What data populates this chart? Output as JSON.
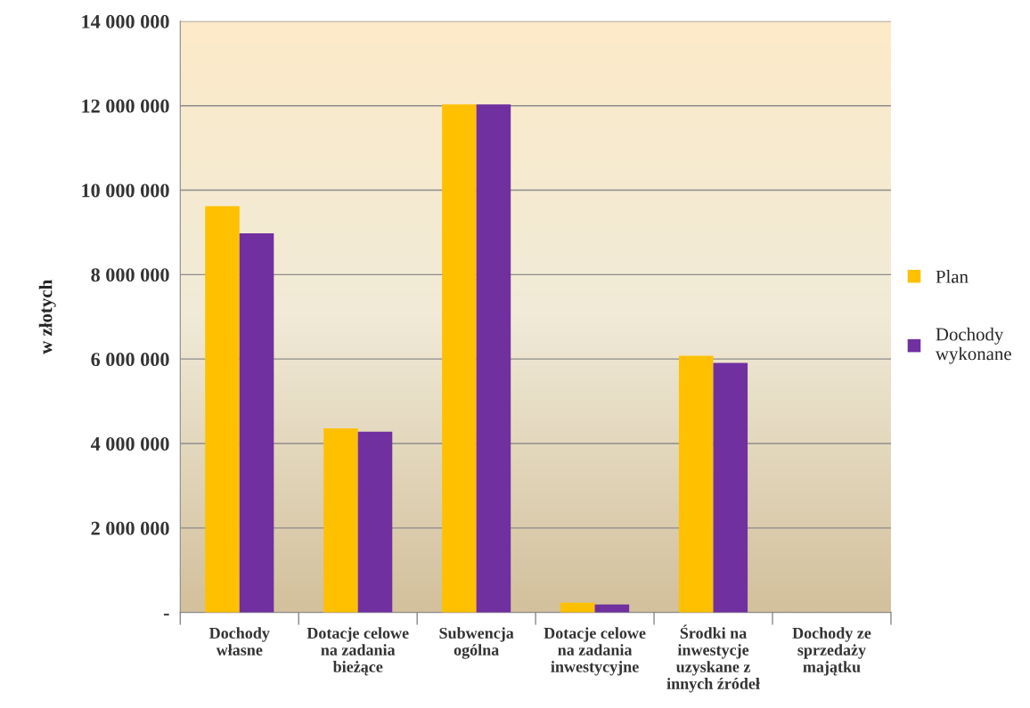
{
  "chart_data": {
    "type": "bar",
    "ylabel": "w złotych",
    "categories": [
      "Dochody\nwłasne",
      "Dotacje celowe\nna zadania\nbieżące",
      "Subwencja\nogólna",
      "Dotacje celowe\nna zadania\ninwestycyjne",
      "Środki na\ninwestycje\nuzyskane z\ninnych źródeł",
      "Dochody ze\nsprzedaży\nmajątku"
    ],
    "series": [
      {
        "name": "Plan",
        "color": "#ffc000",
        "values": [
          9620000,
          4360000,
          12030000,
          230000,
          6080000,
          null
        ]
      },
      {
        "name": "Dochody\nwykonane",
        "color": "#7030a0",
        "values": [
          8980000,
          4280000,
          12030000,
          190000,
          5910000,
          null
        ]
      }
    ],
    "ylim": [
      0,
      14000000
    ],
    "yticks": [
      {
        "value": 0,
        "label": "-"
      },
      {
        "value": 2000000,
        "label": "2 000 000"
      },
      {
        "value": 4000000,
        "label": "4 000 000"
      },
      {
        "value": 6000000,
        "label": "6 000 000"
      },
      {
        "value": 8000000,
        "label": "8 000 000"
      },
      {
        "value": 10000000,
        "label": "10 000 000"
      },
      {
        "value": 12000000,
        "label": "12 000 000"
      },
      {
        "value": 14000000,
        "label": "14 000 000"
      }
    ],
    "grid": "y",
    "legend": "right"
  }
}
